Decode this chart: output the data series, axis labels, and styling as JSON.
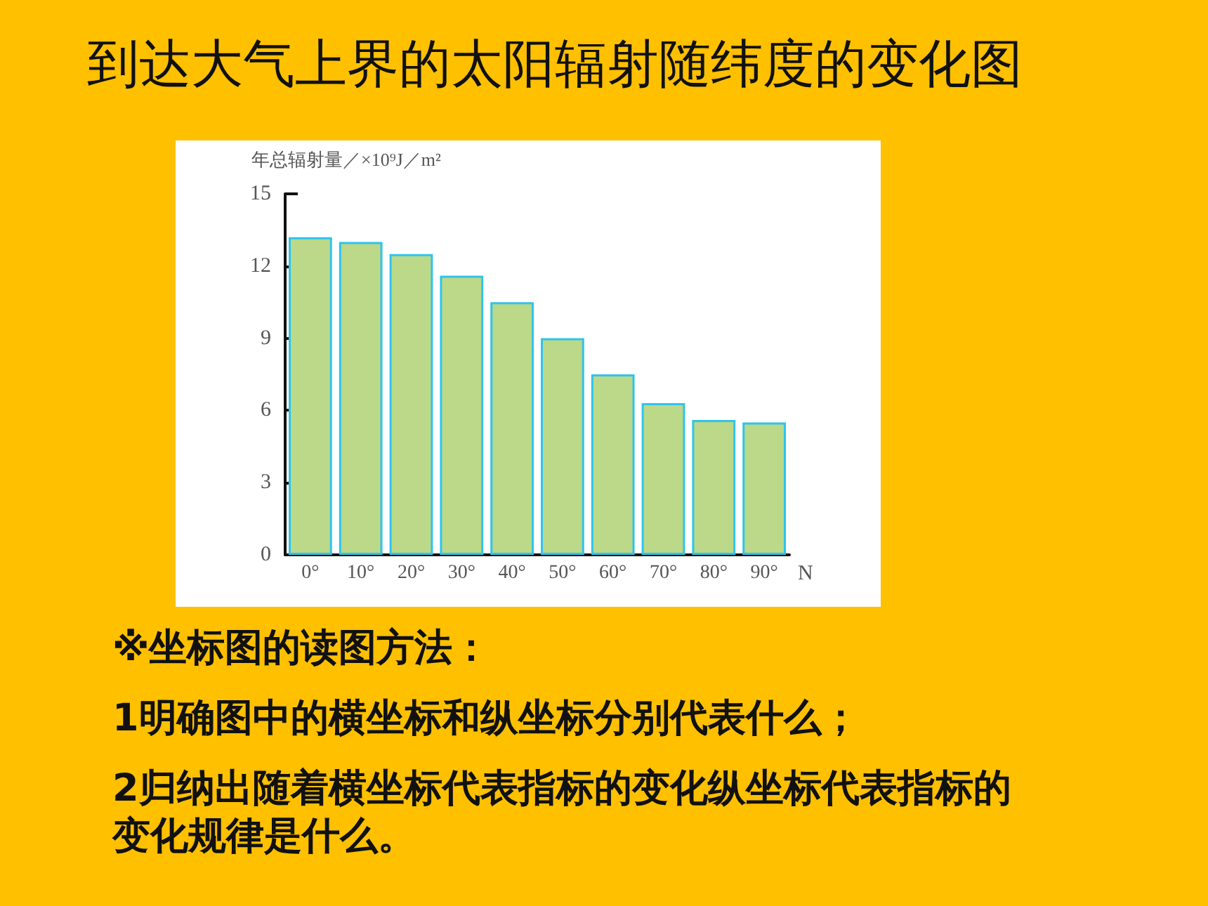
{
  "chart_data": {
    "type": "bar",
    "title": "到达大气上界的太阳辐射随纬度的变化图",
    "ylabel": "年总辐射量／×10⁹J／m²",
    "xlabel": "N",
    "categories": [
      "0°",
      "10°",
      "20°",
      "30°",
      "40°",
      "50°",
      "60°",
      "70°",
      "80°",
      "90°"
    ],
    "values": [
      13.2,
      13.0,
      12.5,
      11.6,
      10.5,
      9.0,
      7.5,
      6.3,
      5.6,
      5.5
    ],
    "color": "#bbd988",
    "ylim": [
      0,
      15
    ],
    "yticks": [
      0,
      3,
      6,
      9,
      12,
      15
    ],
    "annotations": [
      "※坐标图的读图方法：",
      "1明确图中的横坐标和纵坐标分别代表什么；",
      "2归纳出随着横坐标代表指标的变化纵坐标代表指标的变化规律是什么。"
    ]
  }
}
